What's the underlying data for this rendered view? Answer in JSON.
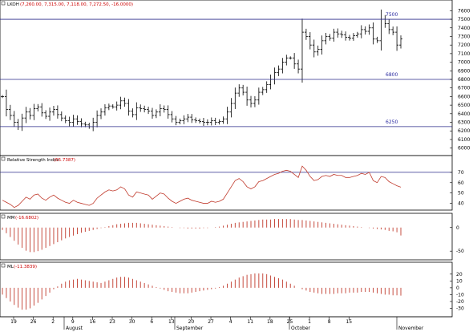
{
  "chart_data": [
    {
      "panel": "price",
      "type": "ohlc",
      "header": {
        "symbol": "LKOH",
        "values": "(7,260.00, 7,315.00, 7,118.00, 7,272.50, -16.0000)"
      },
      "ylim": [
        5950,
        7650
      ],
      "yticks": [
        6000,
        6100,
        6200,
        6300,
        6400,
        6500,
        6600,
        6700,
        6800,
        6900,
        7000,
        7100,
        7200,
        7300,
        7400,
        7500,
        7600
      ],
      "hlines": [
        {
          "value": 7500,
          "label": "7500"
        },
        {
          "value": 6800,
          "label": "6800"
        },
        {
          "value": 6250,
          "label": "6250"
        }
      ],
      "close": [
        6600,
        6450,
        6380,
        6300,
        6250,
        6350,
        6420,
        6380,
        6460,
        6480,
        6410,
        6370,
        6420,
        6450,
        6390,
        6350,
        6320,
        6300,
        6340,
        6310,
        6280,
        6270,
        6250,
        6300,
        6380,
        6420,
        6470,
        6490,
        6480,
        6500,
        6550,
        6520,
        6430,
        6390,
        6470,
        6460,
        6450,
        6430,
        6380,
        6420,
        6460,
        6450,
        6390,
        6340,
        6300,
        6320,
        6340,
        6360,
        6330,
        6320,
        6310,
        6300,
        6300,
        6320,
        6300,
        6310,
        6340,
        6420,
        6520,
        6640,
        6700,
        6650,
        6560,
        6520,
        6560,
        6650,
        6680,
        6740,
        6800,
        6880,
        6920,
        7000,
        7050,
        7050,
        6980,
        6920,
        7350,
        7300,
        7200,
        7120,
        7150,
        7250,
        7300,
        7280,
        7350,
        7330,
        7320,
        7290,
        7280,
        7310,
        7330,
        7380,
        7360,
        7400,
        7270,
        7250,
        7500,
        7450,
        7380,
        7350,
        7200,
        7272
      ]
    },
    {
      "panel": "rsi",
      "type": "line",
      "header": {
        "name": "Relative Strength Index",
        "value": "(55.7387)"
      },
      "ylim": [
        35,
        80
      ],
      "yticks": [
        40,
        50,
        60,
        70
      ],
      "hlines": [
        30,
        70
      ],
      "values": [
        43,
        41,
        39,
        36,
        38,
        42,
        46,
        44,
        48,
        49,
        45,
        43,
        46,
        48,
        45,
        43,
        41,
        40,
        43,
        41,
        40,
        39,
        38,
        40,
        45,
        48,
        51,
        53,
        52,
        53,
        56,
        54,
        48,
        46,
        51,
        50,
        49,
        48,
        44,
        47,
        50,
        49,
        45,
        42,
        40,
        42,
        44,
        45,
        43,
        42,
        41,
        40,
        40,
        42,
        41,
        42,
        44,
        50,
        56,
        62,
        64,
        61,
        56,
        54,
        56,
        61,
        62,
        64,
        66,
        68,
        69,
        71,
        72,
        71,
        68,
        65,
        76,
        72,
        66,
        62,
        63,
        66,
        67,
        66,
        68,
        67,
        67,
        65,
        65,
        66,
        67,
        69,
        68,
        70,
        62,
        60,
        66,
        65,
        61,
        59,
        57,
        55.7
      ]
    },
    {
      "panel": "mm",
      "type": "bar",
      "header": {
        "name": "MM",
        "value": "(-16.6802)"
      },
      "ylim": [
        -65,
        20
      ],
      "yticks": [
        -50,
        0
      ],
      "values": [
        -5,
        -12,
        -20,
        -28,
        -36,
        -43,
        -49,
        -52,
        -52,
        -50,
        -47,
        -43,
        -39,
        -35,
        -31,
        -27,
        -23,
        -20,
        -17,
        -14,
        -11,
        -9,
        -7,
        -5,
        -3,
        -1,
        1,
        3,
        5,
        7,
        8,
        9,
        10,
        10,
        10,
        9,
        8,
        7,
        6,
        5,
        4,
        3,
        2,
        1,
        0,
        -1,
        -1,
        -2,
        -2,
        -2,
        -2,
        -1,
        -1,
        0,
        1,
        2,
        4,
        6,
        8,
        10,
        11,
        12,
        13,
        14,
        15,
        16,
        17,
        17,
        17,
        18,
        18,
        18,
        18,
        18,
        17,
        16,
        16,
        15,
        14,
        13,
        12,
        11,
        10,
        9,
        8,
        7,
        6,
        5,
        4,
        3,
        2,
        1,
        0,
        -1,
        -2,
        -3,
        -4,
        -5,
        -7,
        -8,
        -10,
        -16.7
      ]
    },
    {
      "panel": "ml",
      "type": "bar",
      "header": {
        "name": "ML",
        "value": "(-11.3839)"
      },
      "ylim": [
        -40,
        28
      ],
      "yticks": [
        -30,
        -20,
        -10,
        0,
        10,
        20
      ],
      "values": [
        -10,
        -15,
        -20,
        -25,
        -29,
        -32,
        -32,
        -30,
        -26,
        -22,
        -17,
        -12,
        -7,
        -2,
        2,
        6,
        9,
        11,
        12,
        13,
        12,
        11,
        10,
        9,
        8,
        7,
        9,
        11,
        13,
        15,
        16,
        16,
        15,
        13,
        11,
        9,
        7,
        5,
        3,
        1,
        -1,
        -3,
        -5,
        -6,
        -7,
        -8,
        -8,
        -8,
        -7,
        -6,
        -5,
        -4,
        -3,
        -2,
        -1,
        1,
        3,
        6,
        9,
        12,
        15,
        17,
        19,
        20,
        21,
        21,
        21,
        20,
        18,
        16,
        14,
        12,
        9,
        6,
        3,
        0,
        -2,
        -4,
        -6,
        -7,
        -8,
        -9,
        -9,
        -9,
        -9,
        -8,
        -8,
        -8,
        -7,
        -7,
        -7,
        -6,
        -6,
        -6,
        -7,
        -8,
        -9,
        -10,
        -10,
        -11,
        -11,
        -11.4
      ]
    }
  ],
  "x_axis": {
    "day_labels": [
      "19",
      "26",
      "2",
      "9",
      "16",
      "23",
      "30",
      "6",
      "13",
      "20",
      "27",
      "4",
      "11",
      "18",
      "25",
      "1",
      "8",
      "15"
    ],
    "month_labels": [
      "August",
      "September",
      "October",
      "November"
    ]
  }
}
